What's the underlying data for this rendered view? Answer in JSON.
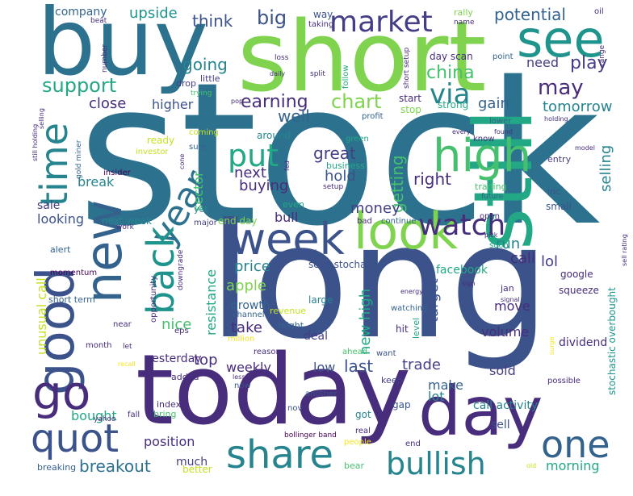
{
  "palette": {
    "yellow": "#f5e61e",
    "yellow_green": "#c7e020",
    "lime": "#7fd34e",
    "green": "#46c06f",
    "jade": "#22a884",
    "teal": "#1f948c",
    "cyan_blue": "#25848e",
    "blue": "#2c728e",
    "steel": "#33638d",
    "indigo": "#3b528b",
    "violet": "#433e85",
    "purple": "#472d7b",
    "deep_purple": "#440154"
  },
  "words": [
    {
      "text": "stock",
      "color": "blue"
    },
    {
      "text": "long",
      "color": "indigo"
    },
    {
      "text": "short",
      "color": "lime"
    },
    {
      "text": "buy",
      "color": "blue"
    },
    {
      "text": "today",
      "color": "purple"
    },
    {
      "text": "still",
      "color": "jade"
    },
    {
      "text": "day",
      "color": "purple"
    },
    {
      "text": "look",
      "color": "lime"
    },
    {
      "text": "week",
      "color": "indigo"
    },
    {
      "text": "see",
      "color": "teal"
    },
    {
      "text": "high",
      "color": "green"
    },
    {
      "text": "good",
      "color": "indigo"
    },
    {
      "text": "new",
      "color": "steel"
    },
    {
      "text": "time",
      "color": "cyan_blue"
    },
    {
      "text": "year",
      "color": "blue"
    },
    {
      "text": "back",
      "color": "teal"
    },
    {
      "text": "go",
      "color": "purple"
    },
    {
      "text": "quot",
      "color": "indigo"
    },
    {
      "text": "share",
      "color": "cyan_blue"
    },
    {
      "text": "one",
      "color": "steel"
    },
    {
      "text": "bullish",
      "color": "cyan_blue"
    },
    {
      "text": "market",
      "color": "violet"
    },
    {
      "text": "watch",
      "color": "purple"
    },
    {
      "text": "put",
      "color": "jade"
    },
    {
      "text": "company",
      "color": "steel"
    },
    {
      "text": "upside",
      "color": "teal"
    },
    {
      "text": "think",
      "color": "indigo"
    },
    {
      "text": "big",
      "color": "indigo"
    },
    {
      "text": "potential",
      "color": "steel"
    },
    {
      "text": "going",
      "color": "cyan_blue"
    },
    {
      "text": "support",
      "color": "jade"
    },
    {
      "text": "china",
      "color": "green"
    },
    {
      "text": "via",
      "color": "cyan_blue"
    },
    {
      "text": "need",
      "color": "violet"
    },
    {
      "text": "play",
      "color": "violet"
    },
    {
      "text": "close",
      "color": "purple"
    },
    {
      "text": "higher",
      "color": "indigo"
    },
    {
      "text": "earning",
      "color": "purple"
    },
    {
      "text": "chart",
      "color": "lime"
    },
    {
      "text": "may",
      "color": "purple"
    },
    {
      "text": "gain",
      "color": "steel"
    },
    {
      "text": "tomorrow",
      "color": "cyan_blue"
    },
    {
      "text": "well",
      "color": "steel"
    },
    {
      "text": "next",
      "color": "purple"
    },
    {
      "text": "great",
      "color": "violet"
    },
    {
      "text": "hold",
      "color": "indigo"
    },
    {
      "text": "getting",
      "color": "green"
    },
    {
      "text": "right",
      "color": "purple"
    },
    {
      "text": "selling",
      "color": "cyan_blue"
    },
    {
      "text": "buying",
      "color": "purple"
    },
    {
      "text": "break",
      "color": "cyan_blue"
    },
    {
      "text": "sector",
      "color": "green"
    },
    {
      "text": "sale",
      "color": "violet"
    },
    {
      "text": "money",
      "color": "violet"
    },
    {
      "text": "looking",
      "color": "indigo"
    },
    {
      "text": "bull",
      "color": "purple"
    },
    {
      "text": "run",
      "color": "cyan_blue"
    },
    {
      "text": "call",
      "color": "purple"
    },
    {
      "text": "lol",
      "color": "violet"
    },
    {
      "text": "price",
      "color": "cyan_blue"
    },
    {
      "text": "resistance",
      "color": "jade"
    },
    {
      "text": "apple",
      "color": "lime"
    },
    {
      "text": "unusual call",
      "color": "yellow_green"
    },
    {
      "text": "new high",
      "color": "jade"
    },
    {
      "text": "target",
      "color": "indigo"
    },
    {
      "text": "growth",
      "color": "steel"
    },
    {
      "text": "move",
      "color": "purple"
    },
    {
      "text": "take",
      "color": "purple"
    },
    {
      "text": "nice",
      "color": "green"
    },
    {
      "text": "volume",
      "color": "purple"
    },
    {
      "text": "top",
      "color": "purple"
    },
    {
      "text": "weekly",
      "color": "purple"
    },
    {
      "text": "low",
      "color": "indigo"
    },
    {
      "text": "last",
      "color": "indigo"
    },
    {
      "text": "trade",
      "color": "violet"
    },
    {
      "text": "yesterday",
      "color": "purple"
    },
    {
      "text": "dividend",
      "color": "purple"
    },
    {
      "text": "sold",
      "color": "violet"
    },
    {
      "text": "make",
      "color": "steel"
    },
    {
      "text": "lot",
      "color": "cyan_blue"
    },
    {
      "text": "bought",
      "color": "jade"
    },
    {
      "text": "position",
      "color": "purple"
    },
    {
      "text": "call activity",
      "color": "cyan_blue"
    },
    {
      "text": "sell",
      "color": "indigo"
    },
    {
      "text": "breakout",
      "color": "blue"
    },
    {
      "text": "much",
      "color": "violet"
    },
    {
      "text": "morning",
      "color": "jade"
    },
    {
      "text": "stochastic overbought",
      "color": "teal"
    },
    {
      "text": "facebook",
      "color": "jade"
    },
    {
      "text": "google",
      "color": "purple"
    },
    {
      "text": "squeeze",
      "color": "purple"
    },
    {
      "text": "scan stochastic",
      "color": "indigo"
    },
    {
      "text": "around",
      "color": "cyan_blue"
    },
    {
      "text": "even",
      "color": "jade"
    },
    {
      "text": "end day",
      "color": "lime"
    },
    {
      "text": "next week",
      "color": "cyan_blue"
    },
    {
      "text": "major",
      "color": "violet"
    },
    {
      "text": "yet",
      "color": "cyan_blue"
    },
    {
      "text": "bad",
      "color": "purple"
    },
    {
      "text": "continue",
      "color": "steel"
    },
    {
      "text": "open",
      "color": "purple"
    },
    {
      "text": "soon",
      "color": "jade"
    },
    {
      "text": "small",
      "color": "indigo"
    },
    {
      "text": "inc",
      "color": "indigo"
    },
    {
      "text": "future",
      "color": "steel"
    },
    {
      "text": "trading",
      "color": "green"
    },
    {
      "text": "entry",
      "color": "violet"
    },
    {
      "text": "lower",
      "color": "steel"
    },
    {
      "text": "know",
      "color": "purple"
    },
    {
      "text": "start",
      "color": "purple"
    },
    {
      "text": "stop",
      "color": "lime"
    },
    {
      "text": "strong",
      "color": "jade"
    },
    {
      "text": "drop",
      "color": "violet"
    },
    {
      "text": "little",
      "color": "violet"
    },
    {
      "text": "day scan",
      "color": "purple"
    },
    {
      "text": "point",
      "color": "steel"
    },
    {
      "text": "profit",
      "color": "steel"
    },
    {
      "text": "green",
      "color": "jade"
    },
    {
      "text": "business",
      "color": "jade"
    },
    {
      "text": "ready",
      "color": "yellow_green"
    },
    {
      "text": "sure",
      "color": "steel"
    },
    {
      "text": "insider",
      "color": "deep_purple"
    },
    {
      "text": "large",
      "color": "cyan_blue"
    },
    {
      "text": "revenue",
      "color": "yellow_green"
    },
    {
      "text": "channel",
      "color": "steel"
    },
    {
      "text": "might",
      "color": "steel"
    },
    {
      "text": "deal",
      "color": "violet"
    },
    {
      "text": "million",
      "color": "yellow"
    },
    {
      "text": "reason",
      "color": "purple"
    },
    {
      "text": "hit",
      "color": "purple"
    },
    {
      "text": "level",
      "color": "jade"
    },
    {
      "text": "want",
      "color": "indigo"
    },
    {
      "text": "ahead",
      "color": "green"
    },
    {
      "text": "watching",
      "color": "steel"
    },
    {
      "text": "keep",
      "color": "violet"
    },
    {
      "text": "added",
      "color": "purple"
    },
    {
      "text": "now",
      "color": "indigo"
    },
    {
      "text": "index",
      "color": "purple"
    },
    {
      "text": "bring",
      "color": "green"
    },
    {
      "text": "fall",
      "color": "purple"
    },
    {
      "text": "nov",
      "color": "indigo"
    },
    {
      "text": "another",
      "color": "indigo"
    },
    {
      "text": "got",
      "color": "cyan_blue"
    },
    {
      "text": "gap",
      "color": "indigo"
    },
    {
      "text": "real",
      "color": "purple"
    },
    {
      "text": "people",
      "color": "yellow"
    },
    {
      "text": "bollinger band",
      "color": "deep_purple"
    },
    {
      "text": "end",
      "color": "purple"
    },
    {
      "text": "bear",
      "color": "green"
    },
    {
      "text": "better",
      "color": "yellow_green"
    },
    {
      "text": "breaking",
      "color": "steel"
    },
    {
      "text": "opportunity",
      "color": "purple"
    },
    {
      "text": "downgrade",
      "color": "purple"
    },
    {
      "text": "momentum",
      "color": "deep_purple"
    },
    {
      "text": "short term",
      "color": "steel"
    },
    {
      "text": "alert",
      "color": "steel"
    },
    {
      "text": "near",
      "color": "purple"
    },
    {
      "text": "eps",
      "color": "purple"
    },
    {
      "text": "month",
      "color": "purple"
    },
    {
      "text": "let",
      "color": "purple"
    },
    {
      "text": "yahoo",
      "color": "purple"
    },
    {
      "text": "work",
      "color": "purple"
    },
    {
      "text": "jan",
      "color": "purple"
    },
    {
      "text": "possible",
      "color": "purple"
    },
    {
      "text": "rally",
      "color": "lime"
    },
    {
      "text": "way",
      "color": "indigo"
    },
    {
      "text": "taking",
      "color": "purple"
    },
    {
      "text": "name",
      "color": "purple"
    },
    {
      "text": "range",
      "color": "purple"
    },
    {
      "text": "oil",
      "color": "purple"
    },
    {
      "text": "beat",
      "color": "purple"
    },
    {
      "text": "number",
      "color": "purple"
    },
    {
      "text": "loss",
      "color": "purple"
    },
    {
      "text": "follow",
      "color": "jade"
    },
    {
      "text": "split",
      "color": "purple"
    },
    {
      "text": "short setup",
      "color": "purple"
    },
    {
      "text": "daily",
      "color": "purple"
    },
    {
      "text": "selling",
      "color": "purple"
    },
    {
      "text": "trying",
      "color": "green"
    },
    {
      "text": "pop",
      "color": "purple"
    },
    {
      "text": "still holding",
      "color": "purple"
    },
    {
      "text": "gold miner",
      "color": "steel"
    },
    {
      "text": "coming",
      "color": "yellow_green"
    },
    {
      "text": "investor",
      "color": "yellow_green"
    },
    {
      "text": "cone",
      "color": "purple"
    },
    {
      "text": "setup",
      "color": "purple"
    },
    {
      "text": "every",
      "color": "purple"
    },
    {
      "text": "found",
      "color": "purple"
    },
    {
      "text": "holding",
      "color": "purple"
    },
    {
      "text": "model",
      "color": "purple"
    },
    {
      "text": "energy",
      "color": "purple"
    },
    {
      "text": "signal",
      "color": "purple"
    },
    {
      "text": "sign",
      "color": "purple"
    },
    {
      "text": "sell rating",
      "color": "purple"
    },
    {
      "text": "pick",
      "color": "purple"
    },
    {
      "text": "recall",
      "color": "yellow"
    },
    {
      "text": "surge",
      "color": "yellow"
    },
    {
      "text": "old",
      "color": "yellow_green"
    },
    {
      "text": "fed",
      "color": "purple"
    },
    {
      "text": "less",
      "color": "purple"
    }
  ]
}
